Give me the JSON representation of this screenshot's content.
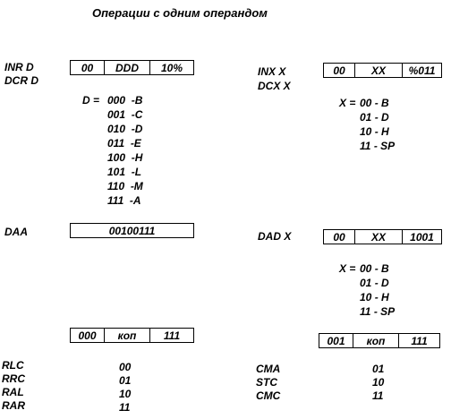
{
  "title": "Операции с одним операндом",
  "inr_dcr": {
    "labels": [
      "INR D",
      "DCR D"
    ],
    "fields": [
      "00",
      "DDD",
      "10%"
    ],
    "var_prefix": "D =",
    "codes": [
      {
        "code": "000",
        "reg": "-B"
      },
      {
        "code": "001",
        "reg": "-C"
      },
      {
        "code": "010",
        "reg": "-D"
      },
      {
        "code": "011",
        "reg": "-E"
      },
      {
        "code": "100",
        "reg": "-H"
      },
      {
        "code": "101",
        "reg": "-L"
      },
      {
        "code": "110",
        "reg": "-M"
      },
      {
        "code": "111",
        "reg": "-A"
      }
    ]
  },
  "inx_dcx": {
    "labels": [
      "INX X",
      "DCX X"
    ],
    "fields": [
      "00",
      "XX",
      "%011"
    ],
    "var_prefix": "X =",
    "codes": [
      {
        "code": "00",
        "reg": "- B"
      },
      {
        "code": "01",
        "reg": "- D"
      },
      {
        "code": "10",
        "reg": "- H"
      },
      {
        "code": "11",
        "reg": "- SP"
      }
    ]
  },
  "daa": {
    "label": "DAA",
    "code": "00100111"
  },
  "dad": {
    "label": "DAD X",
    "fields": [
      "00",
      "XX",
      "1001"
    ],
    "var_prefix": "X =",
    "codes": [
      {
        "code": "00",
        "reg": "- B"
      },
      {
        "code": "01",
        "reg": "- D"
      },
      {
        "code": "10",
        "reg": "- H"
      },
      {
        "code": "11",
        "reg": "- SP"
      }
    ]
  },
  "rot": {
    "fields": [
      "000",
      "коп",
      "111"
    ],
    "ops": [
      {
        "name": "RLC",
        "code": "00"
      },
      {
        "name": "RRC",
        "code": "01"
      },
      {
        "name": "RAL",
        "code": "10"
      },
      {
        "name": "RAR",
        "code": "11"
      }
    ]
  },
  "cma": {
    "fields": [
      "001",
      "коп",
      "111"
    ],
    "ops": [
      {
        "name": "CMA",
        "code": "01"
      },
      {
        "name": "STC",
        "code": "10"
      },
      {
        "name": "CMC",
        "code": "11"
      }
    ]
  }
}
